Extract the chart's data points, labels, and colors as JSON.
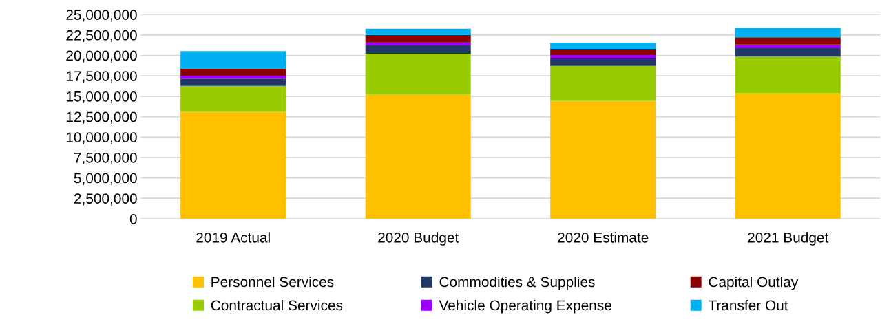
{
  "chart_data": {
    "type": "bar",
    "stacked": true,
    "categories": [
      "2019 Actual",
      "2020 Budget",
      "2020 Estimate",
      "2021 Budget"
    ],
    "series": [
      {
        "name": "Personnel Services",
        "color": "#ffc000",
        "values": [
          13120000,
          15260000,
          14440000,
          15370000
        ]
      },
      {
        "name": "Contractual Services",
        "color": "#99cc00",
        "values": [
          3160000,
          4950000,
          4280000,
          4480000
        ]
      },
      {
        "name": "Commodities & Supplies",
        "color": "#1f3864",
        "values": [
          870000,
          1010000,
          930000,
          1040000
        ]
      },
      {
        "name": "Vehicle Operating Expense",
        "color": "#9900ff",
        "values": [
          360000,
          420000,
          390000,
          450000
        ]
      },
      {
        "name": "Capital Outlay",
        "color": "#8b0000",
        "values": [
          900000,
          870000,
          760000,
          870000
        ]
      },
      {
        "name": "Transfer Out",
        "color": "#00b0f0",
        "values": [
          2110000,
          760000,
          760000,
          1190000
        ]
      }
    ],
    "ylim": [
      0,
      25000000
    ],
    "yticks": [
      {
        "value": 0,
        "label": "0"
      },
      {
        "value": 2500000,
        "label": "2,500,000"
      },
      {
        "value": 5000000,
        "label": "5,000,000"
      },
      {
        "value": 7500000,
        "label": "7,500,000"
      },
      {
        "value": 10000000,
        "label": "10,000,000"
      },
      {
        "value": 12500000,
        "label": "12,500,000"
      },
      {
        "value": 15000000,
        "label": "15,000,000"
      },
      {
        "value": 17500000,
        "label": "17,500,000"
      },
      {
        "value": 20000000,
        "label": "20,000,000"
      },
      {
        "value": 22500000,
        "label": "22,500,000"
      },
      {
        "value": 25000000,
        "label": "25,000,000"
      }
    ],
    "grid": "y",
    "legend": "bottom"
  }
}
